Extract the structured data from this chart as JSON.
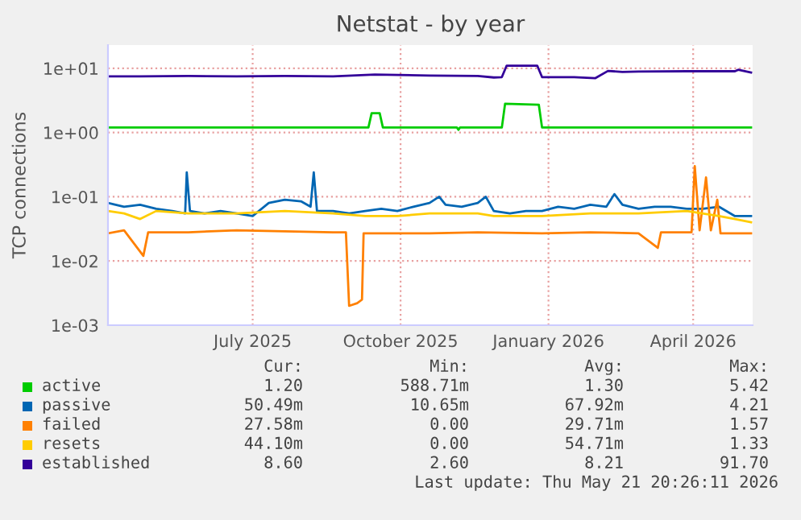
{
  "chart_data": {
    "type": "line",
    "title": "Netstat - by year",
    "ylabel": "TCP connections",
    "log": "y",
    "xlim": [
      "2025-04-02",
      "2026-05-08"
    ],
    "ylim": [
      0.001,
      23
    ],
    "xticks": [
      {
        "value": "2025-07-01",
        "label": "July 2025"
      },
      {
        "value": "2025-10-01",
        "label": "October 2025"
      },
      {
        "value": "2026-01-01",
        "label": "January 2026"
      },
      {
        "value": "2026-04-01",
        "label": "April 2026"
      }
    ],
    "yticks": [
      {
        "value": 0.001,
        "label": "1e-03"
      },
      {
        "value": 0.01,
        "label": "1e-02"
      },
      {
        "value": 0.1,
        "label": "1e-01"
      },
      {
        "value": 1,
        "label": "1e+00"
      },
      {
        "value": 10,
        "label": "1e+01"
      }
    ],
    "grid": true,
    "legend": "bottom",
    "series": [
      {
        "name": "active",
        "color": "#00cc00",
        "x": [
          "2025-04-02",
          "2025-09-11",
          "2025-09-13",
          "2025-09-18",
          "2025-09-20",
          "2025-11-05",
          "2025-11-06",
          "2025-11-07",
          "2025-12-03",
          "2025-12-05",
          "2025-12-26",
          "2025-12-28",
          "2026-05-07"
        ],
        "values": [
          1.2,
          1.2,
          2.0,
          2.0,
          1.2,
          1.2,
          1.1,
          1.2,
          1.2,
          2.8,
          2.7,
          1.2,
          1.2
        ]
      },
      {
        "name": "passive",
        "color": "#0066b3",
        "x": [
          "2025-04-02",
          "2025-04-12",
          "2025-04-22",
          "2025-05-02",
          "2025-05-12",
          "2025-05-20",
          "2025-05-21",
          "2025-05-23",
          "2025-06-01",
          "2025-06-11",
          "2025-06-21",
          "2025-07-01",
          "2025-07-11",
          "2025-07-21",
          "2025-07-31",
          "2025-08-06",
          "2025-08-08",
          "2025-08-10",
          "2025-08-20",
          "2025-08-30",
          "2025-09-09",
          "2025-09-19",
          "2025-09-29",
          "2025-10-09",
          "2025-10-19",
          "2025-10-25",
          "2025-10-29",
          "2025-11-08",
          "2025-11-18",
          "2025-11-23",
          "2025-11-28",
          "2025-12-08",
          "2025-12-18",
          "2025-12-28",
          "2026-01-07",
          "2026-01-17",
          "2026-01-27",
          "2026-02-06",
          "2026-02-11",
          "2026-02-16",
          "2026-02-26",
          "2026-03-08",
          "2026-03-18",
          "2026-03-28",
          "2026-04-07",
          "2026-04-17",
          "2026-04-27",
          "2026-05-07"
        ],
        "values": [
          0.08,
          0.07,
          0.075,
          0.065,
          0.06,
          0.055,
          0.24,
          0.06,
          0.055,
          0.06,
          0.055,
          0.05,
          0.08,
          0.09,
          0.085,
          0.07,
          0.24,
          0.06,
          0.06,
          0.055,
          0.06,
          0.065,
          0.06,
          0.07,
          0.08,
          0.1,
          0.075,
          0.07,
          0.08,
          0.1,
          0.06,
          0.055,
          0.06,
          0.06,
          0.07,
          0.065,
          0.075,
          0.07,
          0.11,
          0.075,
          0.065,
          0.07,
          0.07,
          0.065,
          0.065,
          0.07,
          0.05,
          0.05
        ]
      },
      {
        "name": "failed",
        "color": "#ff8000",
        "x": [
          "2025-04-02",
          "2025-04-12",
          "2025-04-24",
          "2025-04-27",
          "2025-05-22",
          "2025-06-21",
          "2025-07-21",
          "2025-08-20",
          "2025-08-28",
          "2025-08-30",
          "2025-09-04",
          "2025-09-07",
          "2025-09-08",
          "2025-10-19",
          "2025-11-18",
          "2025-12-28",
          "2026-01-27",
          "2026-02-26",
          "2026-03-10",
          "2026-03-12",
          "2026-03-31",
          "2026-04-02",
          "2026-04-05",
          "2026-04-09",
          "2026-04-12",
          "2026-04-16",
          "2026-04-18",
          "2026-05-07"
        ],
        "values": [
          0.027,
          0.03,
          0.012,
          0.028,
          0.028,
          0.03,
          0.029,
          0.028,
          0.028,
          0.002,
          0.0022,
          0.0025,
          0.027,
          0.027,
          0.028,
          0.027,
          0.028,
          0.027,
          0.016,
          0.028,
          0.028,
          0.3,
          0.03,
          0.2,
          0.03,
          0.09,
          0.027,
          0.027
        ]
      },
      {
        "name": "resets",
        "color": "#ffcc00",
        "x": [
          "2025-04-02",
          "2025-04-12",
          "2025-04-22",
          "2025-05-02",
          "2025-05-22",
          "2025-06-21",
          "2025-07-21",
          "2025-08-20",
          "2025-09-09",
          "2025-09-29",
          "2025-10-19",
          "2025-11-18",
          "2025-11-28",
          "2025-12-28",
          "2026-01-27",
          "2026-02-26",
          "2026-03-28",
          "2026-04-17",
          "2026-04-27",
          "2026-05-07"
        ],
        "values": [
          0.06,
          0.055,
          0.045,
          0.06,
          0.055,
          0.055,
          0.06,
          0.055,
          0.05,
          0.05,
          0.055,
          0.055,
          0.05,
          0.05,
          0.055,
          0.055,
          0.06,
          0.05,
          0.045,
          0.04
        ]
      },
      {
        "name": "established",
        "color": "#330099",
        "x": [
          "2025-04-02",
          "2025-04-22",
          "2025-05-22",
          "2025-06-21",
          "2025-07-21",
          "2025-08-20",
          "2025-09-15",
          "2025-10-19",
          "2025-11-18",
          "2025-11-28",
          "2025-12-03",
          "2025-12-06",
          "2025-12-25",
          "2025-12-28",
          "2026-01-17",
          "2026-01-30",
          "2026-02-07",
          "2026-02-16",
          "2026-02-26",
          "2026-03-28",
          "2026-04-17",
          "2026-04-27",
          "2026-04-29",
          "2026-05-07"
        ],
        "values": [
          7.5,
          7.5,
          7.6,
          7.5,
          7.6,
          7.5,
          8.0,
          7.7,
          7.6,
          7.2,
          7.3,
          11,
          11,
          7.3,
          7.3,
          7.0,
          9.1,
          8.8,
          8.9,
          9.0,
          9.0,
          9.0,
          9.5,
          8.6
        ]
      }
    ],
    "annotations": [
      "Cur:",
      "Min:",
      "Avg:",
      "Max:",
      "1.20",
      "588.71m",
      "1.30",
      "5.42",
      "50.49m",
      "10.65m",
      "67.92m",
      "4.21",
      "27.58m",
      "0.00",
      "29.71m",
      "1.57",
      "44.10m",
      "0.00",
      "54.71m",
      "1.33",
      "8.60",
      "2.60",
      "8.21",
      "91.70",
      "Last update: Thu May 21 20:26:11 2026"
    ]
  }
}
